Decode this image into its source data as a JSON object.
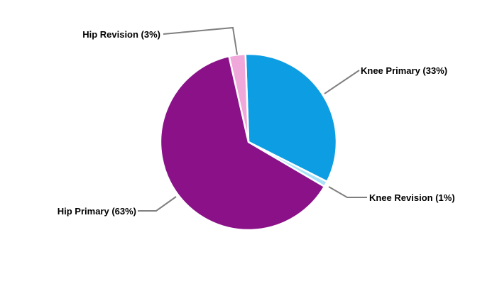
{
  "figure": {
    "background": "#FFFFFF",
    "leader_line_color": "#7F7F7F",
    "label_text_color": "#000000"
  },
  "chart_data": {
    "type": "pie",
    "unit": "percent",
    "direction": "clockwise",
    "start_angle_deg": -2,
    "legend_position": "none",
    "label_style": "callout-with-percent",
    "slices": [
      {
        "label": "Knee Primary",
        "value": 33,
        "display": "Knee Primary (33%)",
        "color": "#0D9DE2"
      },
      {
        "label": "Knee Revision",
        "value": 1,
        "display": "Knee Revision (1%)",
        "color": "#ABE1F8"
      },
      {
        "label": "Hip Primary",
        "value": 63,
        "display": "Hip Primary (63%)",
        "color": "#8A1188"
      },
      {
        "label": "Hip Revision",
        "value": 3,
        "display": "Hip Revision (3%)",
        "color": "#F0A8DA"
      }
    ]
  }
}
